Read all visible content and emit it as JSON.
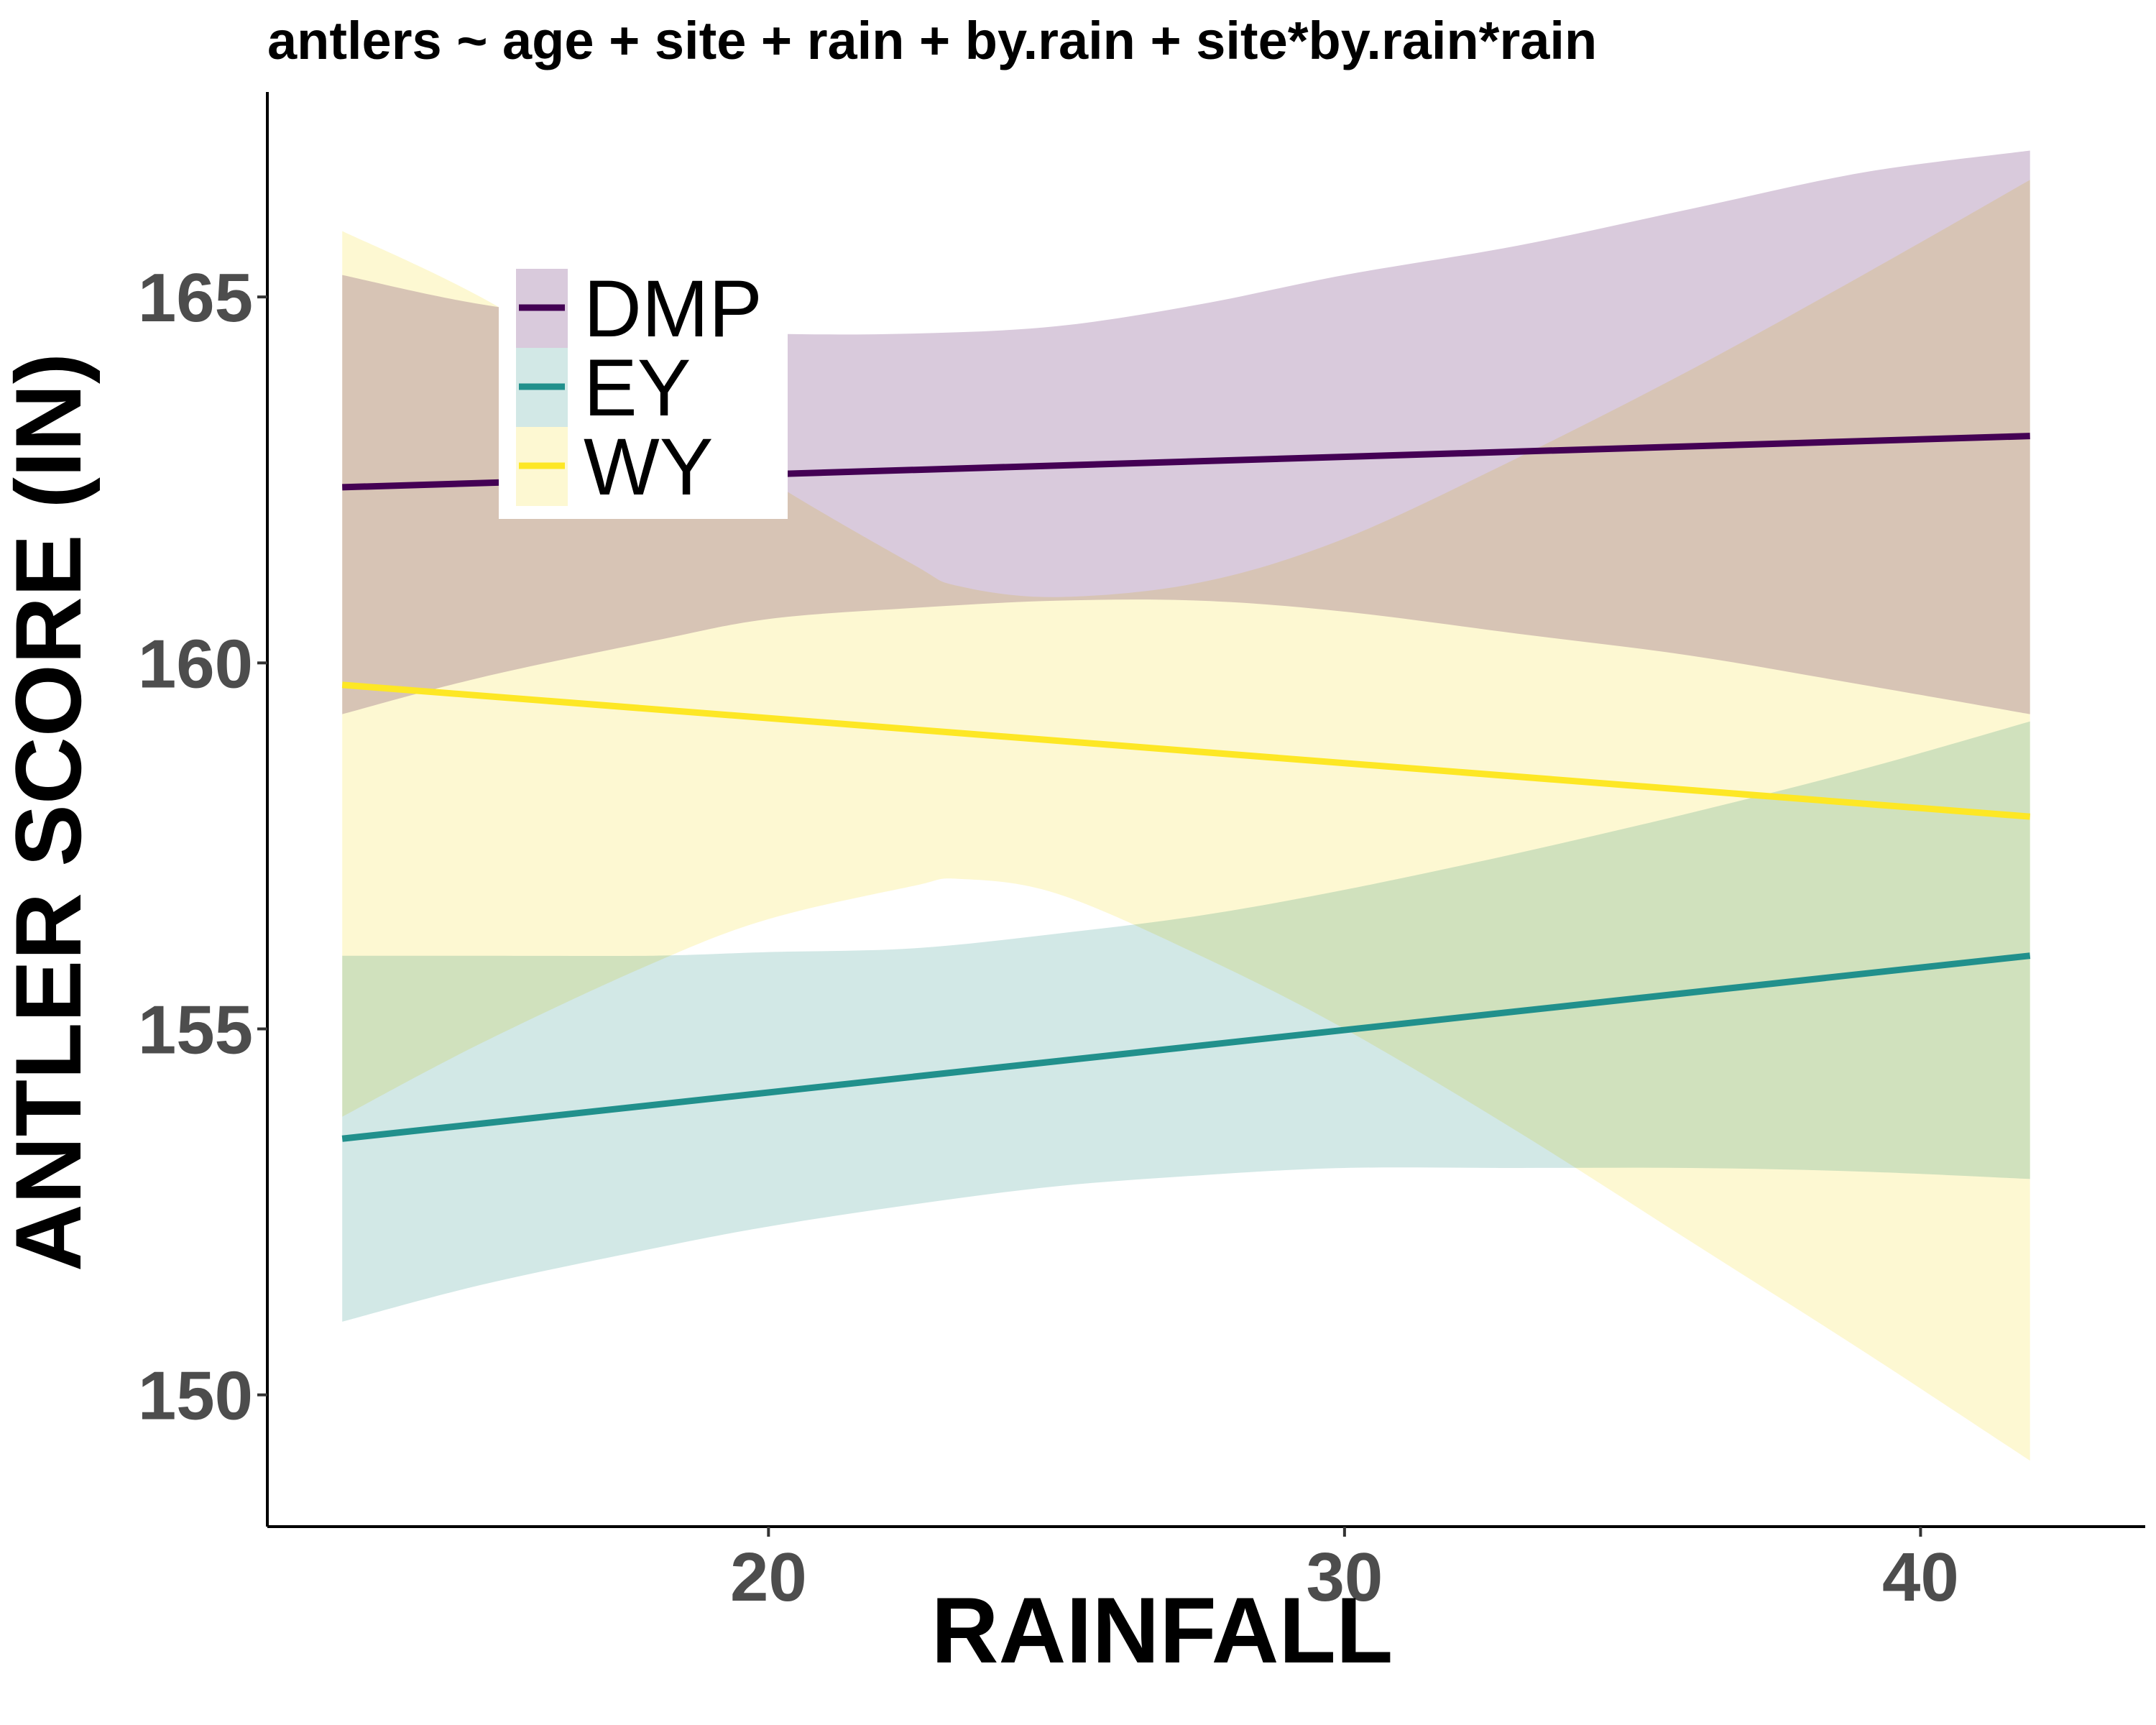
{
  "chart_data": {
    "type": "line",
    "title": "antlers ~ age + site + rain + by.rain + site*by.rain*rain",
    "xlabel": "RAINFALL",
    "ylabel": "ANTLER SCORE (IN)",
    "xlim": [
      11.3,
      43.9
    ],
    "ylim": [
      148.2,
      167.8
    ],
    "x_ticks": [
      20,
      30,
      40
    ],
    "x_tick_labels": [
      "20",
      "30",
      "40"
    ],
    "y_ticks": [
      150,
      155,
      160,
      165
    ],
    "y_tick_labels": [
      "150",
      "155",
      "160",
      "165"
    ],
    "grid": false,
    "legend_position": "top-left",
    "series": [
      {
        "name": "DMP",
        "color": "#440154",
        "fill": "#d9cadc",
        "line": [
          [
            12.6,
            162.4
          ],
          [
            41.9,
            163.1
          ]
        ],
        "band": {
          "x": [
            12.6,
            15,
            18,
            20,
            22.5,
            25,
            27.5,
            30,
            33,
            36,
            39,
            41.9
          ],
          "lower": [
            159.3,
            159.8,
            160.3,
            160.6,
            160.75,
            160.85,
            160.85,
            160.7,
            160.4,
            160.1,
            159.7,
            159.3
          ],
          "upper": [
            165.3,
            164.9,
            164.6,
            164.5,
            164.5,
            164.6,
            164.9,
            165.3,
            165.7,
            166.2,
            166.7,
            167.0
          ]
        }
      },
      {
        "name": "EY",
        "color": "#21908c",
        "fill": "#d2e8e6",
        "line": [
          [
            12.6,
            153.5
          ],
          [
            41.9,
            156.0
          ]
        ],
        "band": {
          "x": [
            12.6,
            15,
            18,
            20,
            22.5,
            25,
            27.5,
            30,
            33,
            36,
            39,
            41.9
          ],
          "lower": [
            151.0,
            151.5,
            152.0,
            152.3,
            152.6,
            152.85,
            153.0,
            153.1,
            153.1,
            153.1,
            153.05,
            152.95
          ],
          "upper": [
            156.0,
            156.0,
            156.0,
            156.05,
            156.1,
            156.3,
            156.55,
            156.9,
            157.4,
            157.95,
            158.55,
            159.2
          ]
        }
      },
      {
        "name": "WY",
        "color": "#fde725",
        "fill": "#fdf8d2",
        "line": [
          [
            12.6,
            159.7
          ],
          [
            41.9,
            157.9
          ]
        ],
        "band": {
          "x": [
            12.6,
            15,
            18,
            20,
            22.5,
            23.3,
            25,
            27.5,
            30,
            33,
            36,
            39,
            41.9
          ],
          "lower": [
            153.8,
            154.8,
            155.9,
            156.5,
            156.95,
            157.05,
            156.85,
            156.0,
            155.0,
            153.6,
            152.1,
            150.6,
            149.1
          ],
          "upper": [
            165.9,
            165.0,
            163.6,
            162.5,
            161.35,
            161.05,
            160.9,
            161.1,
            161.7,
            162.8,
            164.0,
            165.3,
            166.6
          ]
        }
      }
    ]
  }
}
